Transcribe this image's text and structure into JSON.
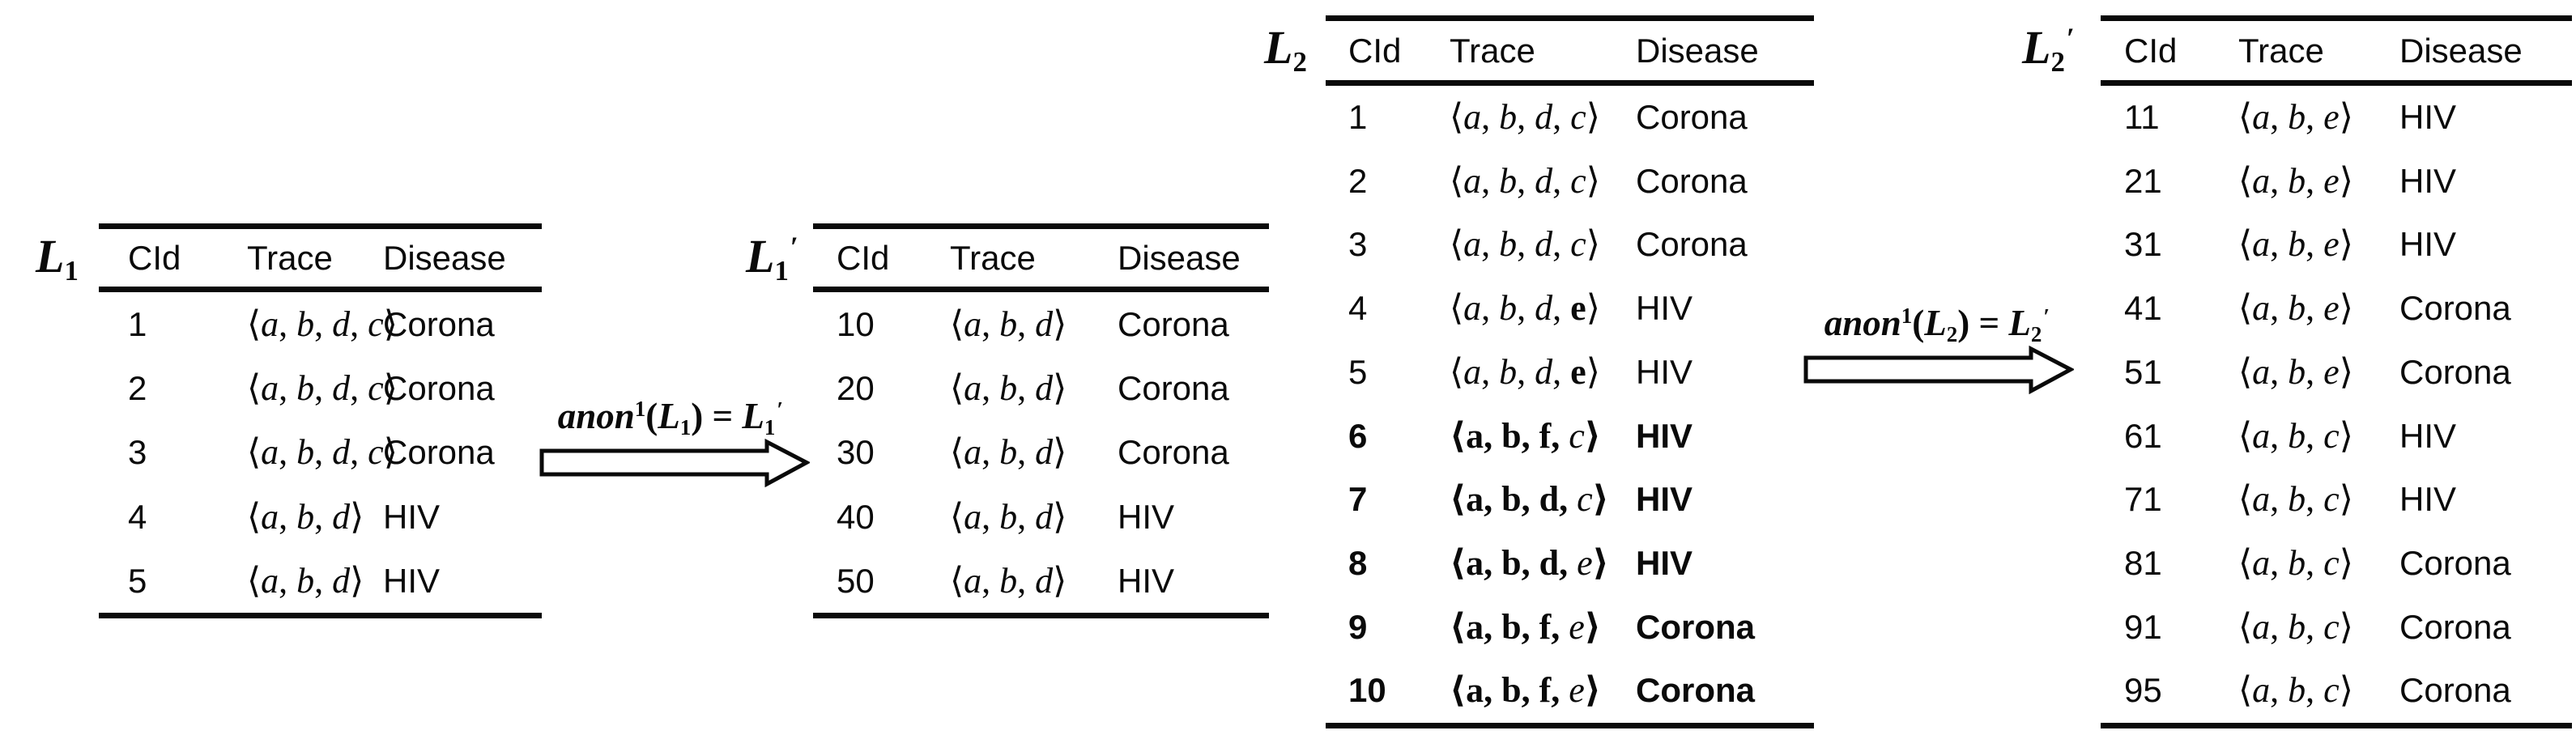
{
  "figure": {
    "background": "#ffffff",
    "ink": "#0a0a0a"
  },
  "tables": [
    {
      "id": "L1",
      "label": {
        "base": "L",
        "sub": "1",
        "prime": ""
      },
      "columns": [
        "CId",
        "Trace",
        "Disease"
      ],
      "rows": [
        {
          "cid": "1",
          "emphasis": false,
          "disease": "Corona",
          "trace": {
            "open": "⟨",
            "close": "⟩",
            "bold_delims": false,
            "items": [
              [
                "a",
                "i"
              ],
              [
                "b",
                "i"
              ],
              [
                "d",
                "i"
              ],
              [
                "c",
                "i"
              ]
            ]
          }
        },
        {
          "cid": "2",
          "emphasis": false,
          "disease": "Corona",
          "trace": {
            "open": "⟨",
            "close": "⟩",
            "bold_delims": false,
            "items": [
              [
                "a",
                "i"
              ],
              [
                "b",
                "i"
              ],
              [
                "d",
                "i"
              ],
              [
                "c",
                "i"
              ]
            ]
          }
        },
        {
          "cid": "3",
          "emphasis": false,
          "disease": "Corona",
          "trace": {
            "open": "⟨",
            "close": "⟩",
            "bold_delims": false,
            "items": [
              [
                "a",
                "i"
              ],
              [
                "b",
                "i"
              ],
              [
                "d",
                "i"
              ],
              [
                "c",
                "i"
              ]
            ]
          }
        },
        {
          "cid": "4",
          "emphasis": false,
          "disease": "HIV",
          "trace": {
            "open": "⟨",
            "close": "⟩",
            "bold_delims": false,
            "items": [
              [
                "a",
                "i"
              ],
              [
                "b",
                "i"
              ],
              [
                "d",
                "i"
              ]
            ]
          }
        },
        {
          "cid": "5",
          "emphasis": false,
          "disease": "HIV",
          "trace": {
            "open": "⟨",
            "close": "⟩",
            "bold_delims": false,
            "items": [
              [
                "a",
                "i"
              ],
              [
                "b",
                "i"
              ],
              [
                "d",
                "i"
              ]
            ]
          }
        }
      ]
    },
    {
      "id": "L1p",
      "label": {
        "base": "L",
        "sub": "1",
        "prime": "′"
      },
      "columns": [
        "CId",
        "Trace",
        "Disease"
      ],
      "rows": [
        {
          "cid": "10",
          "emphasis": false,
          "disease": "Corona",
          "trace": {
            "open": "⟨",
            "close": "⟩",
            "bold_delims": false,
            "items": [
              [
                "a",
                "i"
              ],
              [
                "b",
                "i"
              ],
              [
                "d",
                "i"
              ]
            ]
          }
        },
        {
          "cid": "20",
          "emphasis": false,
          "disease": "Corona",
          "trace": {
            "open": "⟨",
            "close": "⟩",
            "bold_delims": false,
            "items": [
              [
                "a",
                "i"
              ],
              [
                "b",
                "i"
              ],
              [
                "d",
                "i"
              ]
            ]
          }
        },
        {
          "cid": "30",
          "emphasis": false,
          "disease": "Corona",
          "trace": {
            "open": "⟨",
            "close": "⟩",
            "bold_delims": false,
            "items": [
              [
                "a",
                "i"
              ],
              [
                "b",
                "i"
              ],
              [
                "d",
                "i"
              ]
            ]
          }
        },
        {
          "cid": "40",
          "emphasis": false,
          "disease": "HIV",
          "trace": {
            "open": "⟨",
            "close": "⟩",
            "bold_delims": false,
            "items": [
              [
                "a",
                "i"
              ],
              [
                "b",
                "i"
              ],
              [
                "d",
                "i"
              ]
            ]
          }
        },
        {
          "cid": "50",
          "emphasis": false,
          "disease": "HIV",
          "trace": {
            "open": "⟨",
            "close": "⟩",
            "bold_delims": false,
            "items": [
              [
                "a",
                "i"
              ],
              [
                "b",
                "i"
              ],
              [
                "d",
                "i"
              ]
            ]
          }
        }
      ]
    },
    {
      "id": "L2",
      "label": {
        "base": "L",
        "sub": "2",
        "prime": ""
      },
      "columns": [
        "CId",
        "Trace",
        "Disease"
      ],
      "rows": [
        {
          "cid": "1",
          "emphasis": false,
          "disease": "Corona",
          "trace": {
            "open": "⟨",
            "close": "⟩",
            "bold_delims": false,
            "items": [
              [
                "a",
                "i"
              ],
              [
                "b",
                "i"
              ],
              [
                "d",
                "i"
              ],
              [
                "c",
                "i"
              ]
            ]
          }
        },
        {
          "cid": "2",
          "emphasis": false,
          "disease": "Corona",
          "trace": {
            "open": "⟨",
            "close": "⟩",
            "bold_delims": false,
            "items": [
              [
                "a",
                "i"
              ],
              [
                "b",
                "i"
              ],
              [
                "d",
                "i"
              ],
              [
                "c",
                "i"
              ]
            ]
          }
        },
        {
          "cid": "3",
          "emphasis": false,
          "disease": "Corona",
          "trace": {
            "open": "⟨",
            "close": "⟩",
            "bold_delims": false,
            "items": [
              [
                "a",
                "i"
              ],
              [
                "b",
                "i"
              ],
              [
                "d",
                "i"
              ],
              [
                "c",
                "i"
              ]
            ]
          }
        },
        {
          "cid": "4",
          "emphasis": false,
          "disease": "HIV",
          "trace": {
            "open": "⟨",
            "close": "⟩",
            "bold_delims": false,
            "items": [
              [
                "a",
                "i"
              ],
              [
                "b",
                "i"
              ],
              [
                "d",
                "i"
              ],
              [
                "e",
                "b"
              ]
            ]
          }
        },
        {
          "cid": "5",
          "emphasis": false,
          "disease": "HIV",
          "trace": {
            "open": "⟨",
            "close": "⟩",
            "bold_delims": false,
            "items": [
              [
                "a",
                "i"
              ],
              [
                "b",
                "i"
              ],
              [
                "d",
                "i"
              ],
              [
                "e",
                "b"
              ]
            ]
          }
        },
        {
          "cid": "6",
          "emphasis": true,
          "disease": "HIV",
          "trace": {
            "open": "⟨",
            "close": "⟩",
            "bold_delims": true,
            "items": [
              [
                "a",
                "b"
              ],
              [
                "b",
                "b"
              ],
              [
                "f",
                "b"
              ],
              [
                "c",
                "i"
              ]
            ]
          }
        },
        {
          "cid": "7",
          "emphasis": true,
          "disease": "HIV",
          "trace": {
            "open": "⟨",
            "close": "⟩",
            "bold_delims": true,
            "items": [
              [
                "a",
                "b"
              ],
              [
                "b",
                "b"
              ],
              [
                "d",
                "b"
              ],
              [
                "c",
                "i"
              ]
            ]
          }
        },
        {
          "cid": "8",
          "emphasis": true,
          "disease": "HIV",
          "trace": {
            "open": "⟨",
            "close": "⟩",
            "bold_delims": true,
            "items": [
              [
                "a",
                "b"
              ],
              [
                "b",
                "b"
              ],
              [
                "d",
                "b"
              ],
              [
                "e",
                "i"
              ]
            ]
          }
        },
        {
          "cid": "9",
          "emphasis": true,
          "disease": "Corona",
          "trace": {
            "open": "⟨",
            "close": "⟩",
            "bold_delims": true,
            "items": [
              [
                "a",
                "b"
              ],
              [
                "b",
                "b"
              ],
              [
                "f",
                "b"
              ],
              [
                "e",
                "i"
              ]
            ]
          }
        },
        {
          "cid": "10",
          "emphasis": true,
          "disease": "Corona",
          "trace": {
            "open": "⟨",
            "close": "⟩",
            "bold_delims": true,
            "items": [
              [
                "a",
                "b"
              ],
              [
                "b",
                "b"
              ],
              [
                "f",
                "b"
              ],
              [
                "e",
                "i"
              ]
            ]
          }
        }
      ]
    },
    {
      "id": "L2p",
      "label": {
        "base": "L",
        "sub": "2",
        "prime": "′"
      },
      "columns": [
        "CId",
        "Trace",
        "Disease"
      ],
      "rows": [
        {
          "cid": "11",
          "emphasis": false,
          "disease": "HIV",
          "trace": {
            "open": "⟨",
            "close": "⟩",
            "bold_delims": false,
            "items": [
              [
                "a",
                "i"
              ],
              [
                "b",
                "i"
              ],
              [
                "e",
                "i"
              ]
            ]
          }
        },
        {
          "cid": "21",
          "emphasis": false,
          "disease": "HIV",
          "trace": {
            "open": "⟨",
            "close": "⟩",
            "bold_delims": false,
            "items": [
              [
                "a",
                "i"
              ],
              [
                "b",
                "i"
              ],
              [
                "e",
                "i"
              ]
            ]
          }
        },
        {
          "cid": "31",
          "emphasis": false,
          "disease": "HIV",
          "trace": {
            "open": "⟨",
            "close": "⟩",
            "bold_delims": false,
            "items": [
              [
                "a",
                "i"
              ],
              [
                "b",
                "i"
              ],
              [
                "e",
                "i"
              ]
            ]
          }
        },
        {
          "cid": "41",
          "emphasis": false,
          "disease": "Corona",
          "trace": {
            "open": "⟨",
            "close": "⟩",
            "bold_delims": false,
            "items": [
              [
                "a",
                "i"
              ],
              [
                "b",
                "i"
              ],
              [
                "e",
                "i"
              ]
            ]
          }
        },
        {
          "cid": "51",
          "emphasis": false,
          "disease": "Corona",
          "trace": {
            "open": "⟨",
            "close": "⟩",
            "bold_delims": false,
            "items": [
              [
                "a",
                "i"
              ],
              [
                "b",
                "i"
              ],
              [
                "e",
                "i"
              ]
            ]
          }
        },
        {
          "cid": "61",
          "emphasis": false,
          "disease": "HIV",
          "trace": {
            "open": "⟨",
            "close": "⟩",
            "bold_delims": false,
            "items": [
              [
                "a",
                "i"
              ],
              [
                "b",
                "i"
              ],
              [
                "c",
                "i"
              ]
            ]
          }
        },
        {
          "cid": "71",
          "emphasis": false,
          "disease": "HIV",
          "trace": {
            "open": "⟨",
            "close": "⟩",
            "bold_delims": false,
            "items": [
              [
                "a",
                "i"
              ],
              [
                "b",
                "i"
              ],
              [
                "c",
                "i"
              ]
            ]
          }
        },
        {
          "cid": "81",
          "emphasis": false,
          "disease": "Corona",
          "trace": {
            "open": "⟨",
            "close": "⟩",
            "bold_delims": false,
            "items": [
              [
                "a",
                "i"
              ],
              [
                "b",
                "i"
              ],
              [
                "c",
                "i"
              ]
            ]
          }
        },
        {
          "cid": "91",
          "emphasis": false,
          "disease": "Corona",
          "trace": {
            "open": "⟨",
            "close": "⟩",
            "bold_delims": false,
            "items": [
              [
                "a",
                "i"
              ],
              [
                "b",
                "i"
              ],
              [
                "c",
                "i"
              ]
            ]
          }
        },
        {
          "cid": "95",
          "emphasis": false,
          "disease": "Corona",
          "trace": {
            "open": "⟨",
            "close": "⟩",
            "bold_delims": false,
            "items": [
              [
                "a",
                "i"
              ],
              [
                "b",
                "i"
              ],
              [
                "c",
                "i"
              ]
            ]
          }
        }
      ]
    }
  ],
  "arrows": [
    {
      "id": "anon-L1",
      "text": "anon¹(L₁) = L₁′",
      "fn": "anon",
      "sup": "1",
      "open": "(",
      "arg": {
        "base": "L",
        "sub": "1",
        "prime": ""
      },
      "close": ")",
      "equals": " = ",
      "result": {
        "base": "L",
        "sub": "1",
        "prime": "′"
      }
    },
    {
      "id": "anon-L2",
      "text": "anon¹(L₂) = L₂′",
      "fn": "anon",
      "sup": "1",
      "open": "(",
      "arg": {
        "base": "L",
        "sub": "2",
        "prime": ""
      },
      "close": ")",
      "equals": " = ",
      "result": {
        "base": "L",
        "sub": "2",
        "prime": "′"
      }
    }
  ]
}
